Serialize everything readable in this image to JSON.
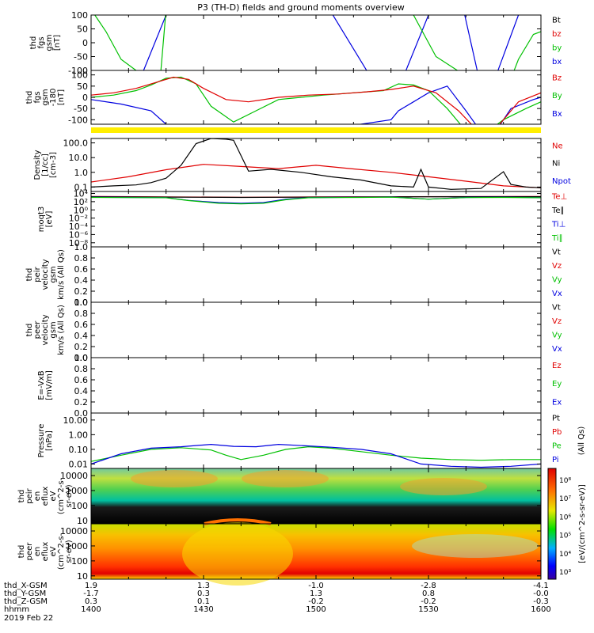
{
  "chart_data": {
    "type": "line",
    "title": "P3 (TH-D) fields and ground moments overview",
    "date_label": "2019 Feb 22",
    "panels": [
      {
        "ylabel": [
          "thd",
          "fgs",
          "gsm",
          "[nT]"
        ],
        "scale": "linear",
        "ticks": [
          "100",
          "50",
          "0",
          "-50",
          "-100"
        ],
        "tick_values": [
          100,
          50,
          0,
          -50,
          -100
        ],
        "ylim": [
          -100,
          100
        ],
        "legend": [
          {
            "name": "Bt",
            "color": "#000000"
          },
          {
            "name": "bz",
            "color": "#e00000"
          },
          {
            "name": "by",
            "color": "#00c000"
          },
          {
            "name": "bx",
            "color": "#0000e0"
          }
        ]
      },
      {
        "ylabel": [
          "thd",
          "fgs",
          "gsm",
          "-180",
          "[nT]"
        ],
        "scale": "linear",
        "ticks": [
          "100",
          "50",
          "0",
          "-50",
          "-100"
        ],
        "tick_values": [
          100,
          50,
          0,
          -50,
          -100
        ],
        "ylim": [
          -120,
          120
        ],
        "legend": [
          {
            "name": "Bz",
            "color": "#e00000"
          },
          {
            "name": "By",
            "color": "#00c000"
          },
          {
            "name": "Bx",
            "color": "#0000e0"
          }
        ]
      },
      {
        "ylabel": [
          "Density",
          "[1/cc]",
          "[cm-3]"
        ],
        "scale": "log",
        "ticks": [
          "100.0",
          "10.0",
          "1.0",
          "0.1"
        ],
        "tick_values": [
          100,
          10,
          1,
          0.1
        ],
        "ylim": [
          0.05,
          200
        ],
        "legend": [
          {
            "name": "Ne",
            "color": "#e00000"
          },
          {
            "name": "Ni",
            "color": "#000000"
          },
          {
            "name": "Npot",
            "color": "#0000e0"
          }
        ]
      },
      {
        "ylabel": [
          "moqt3",
          "[eV]"
        ],
        "scale": "log",
        "ticks": [
          "10⁴",
          "10²",
          "10⁰",
          "10⁻²",
          "10⁻⁴",
          "10⁻⁶",
          "10⁻⁸"
        ],
        "tick_values": [
          10000,
          100,
          1,
          0.01,
          0.0001,
          1e-06,
          1e-08
        ],
        "ylim": [
          1e-09,
          30000
        ],
        "legend": [
          {
            "name": "Te⊥",
            "color": "#e00000"
          },
          {
            "name": "Te∥",
            "color": "#000000"
          },
          {
            "name": "Ti⊥",
            "color": "#0000e0"
          },
          {
            "name": "Ti∥",
            "color": "#00c000"
          }
        ]
      },
      {
        "ylabel": [
          "thd",
          "peir",
          "velocity",
          "gsm",
          "km/s (All Qs)"
        ],
        "scale": "linear",
        "ticks": [
          "1.0",
          "0.8",
          "0.6",
          "0.4",
          "0.2",
          "0.0"
        ],
        "tick_values": [
          1,
          0.8,
          0.6,
          0.4,
          0.2,
          0
        ],
        "ylim": [
          0,
          1
        ],
        "legend": [
          {
            "name": "Vt",
            "color": "#000000"
          },
          {
            "name": "Vz",
            "color": "#e00000"
          },
          {
            "name": "Vy",
            "color": "#00c000"
          },
          {
            "name": "Vx",
            "color": "#0000e0"
          }
        ]
      },
      {
        "ylabel": [
          "thd",
          "peer",
          "velocity",
          "gsm",
          "km/s (All Qs)"
        ],
        "scale": "linear",
        "ticks": [
          "1.0",
          "0.8",
          "0.6",
          "0.4",
          "0.2",
          "0.0"
        ],
        "tick_values": [
          1,
          0.8,
          0.6,
          0.4,
          0.2,
          0
        ],
        "ylim": [
          0,
          1
        ],
        "legend": [
          {
            "name": "Vt",
            "color": "#000000"
          },
          {
            "name": "Vz",
            "color": "#e00000"
          },
          {
            "name": "Vy",
            "color": "#00c000"
          },
          {
            "name": "Vx",
            "color": "#0000e0"
          }
        ]
      },
      {
        "ylabel": [
          "E=-VxB",
          "[mV/m]"
        ],
        "scale": "linear",
        "ticks": [
          "1.0",
          "0.8",
          "0.6",
          "0.4",
          "0.2",
          "0.0"
        ],
        "tick_values": [
          1,
          0.8,
          0.6,
          0.4,
          0.2,
          0
        ],
        "ylim": [
          0,
          1
        ],
        "legend": [
          {
            "name": "Ez",
            "color": "#e00000"
          },
          {
            "name": "Ey",
            "color": "#00c000"
          },
          {
            "name": "Ex",
            "color": "#0000e0"
          }
        ]
      },
      {
        "ylabel": [
          "Pressure",
          "[nPa]"
        ],
        "scale": "log",
        "ticks": [
          "10.00",
          "1.00",
          "0.10",
          "0.01"
        ],
        "tick_values": [
          10,
          1,
          0.1,
          0.01
        ],
        "ylim": [
          0.005,
          30
        ],
        "legend": [
          {
            "name": "Pt",
            "color": "#000000"
          },
          {
            "name": "Pb",
            "color": "#e00000"
          },
          {
            "name": "Pe",
            "color": "#00c000"
          },
          {
            "name": "Pi",
            "color": "#0000e0"
          }
        ],
        "right_note": "(All Qs)"
      },
      {
        "ylabel": [
          "thd",
          "peir",
          "en",
          "eflux",
          "eV",
          "(cm^2-s-",
          "sr-eV)"
        ],
        "scale": "log",
        "spectrogram": true,
        "ticks": [
          "10000",
          "1000",
          "100",
          "10"
        ],
        "tick_values": [
          10000,
          1000,
          100,
          10
        ],
        "ylim": [
          6,
          30000
        ]
      },
      {
        "ylabel": [
          "thd",
          "peer",
          "en",
          "eflux",
          "eV",
          "(cm^2-s-",
          "sr-eV)"
        ],
        "scale": "log",
        "spectrogram": true,
        "ticks": [
          "10000",
          "1000",
          "100",
          "10"
        ],
        "tick_values": [
          10000,
          1000,
          100,
          10
        ],
        "ylim": [
          6,
          30000
        ]
      }
    ],
    "colorbar": {
      "ticks": [
        "10⁸",
        "10⁷",
        "10⁶",
        "10⁵",
        "10⁴",
        "10³"
      ],
      "label": "[eV/(cm^2-s-sr-eV)]"
    },
    "x_axis": {
      "row_labels": [
        "thd_X-GSM",
        "thd_Y-GSM",
        "thd_Z-GSM",
        "hhmm"
      ],
      "x_gsm": [
        "1.9",
        "1.3",
        "-1.0",
        "-2.8",
        "-4.1"
      ],
      "y_gsm": [
        "-1.7",
        "0.3",
        "1.3",
        "0.8",
        "-0.0"
      ],
      "z_gsm": [
        "0.3",
        "0.1",
        "-0.2",
        "-0.2",
        "-0.3"
      ],
      "hhmm": [
        "1400",
        "1430",
        "1500",
        "1530",
        "1600"
      ],
      "time_minutes": [
        0,
        30,
        60,
        90,
        120
      ]
    },
    "series_data": {
      "fgs_bx": {
        "x": [
          0,
          14,
          20,
          26,
          38,
          50,
          60,
          78,
          84,
          90,
          96,
          98,
          103,
          105,
          108,
          114,
          120
        ],
        "y": [
          -200,
          -100,
          100,
          200,
          200,
          200,
          200,
          -200,
          -100,
          100,
          200,
          200,
          -100,
          -200,
          -120,
          100,
          200
        ]
      },
      "fgs_by": {
        "x": [
          0,
          4,
          8,
          12,
          14,
          18,
          20,
          26,
          32,
          40,
          50,
          60,
          70,
          80,
          86,
          92,
          100,
          106,
          110,
          114,
          118,
          120
        ],
        "y": [
          120,
          40,
          -60,
          -100,
          -200,
          -200,
          120,
          200,
          200,
          200,
          200,
          200,
          200,
          200,
          100,
          -50,
          -120,
          -200,
          -200,
          -60,
          30,
          40
        ]
      },
      "fgs180_bx": {
        "x": [
          0,
          8,
          16,
          20,
          26,
          34,
          40,
          48,
          56,
          60,
          66,
          72,
          80,
          82,
          86,
          90,
          95,
          100,
          106,
          108,
          112,
          118,
          120
        ],
        "y": [
          -10,
          -30,
          -60,
          -120,
          -140,
          -140,
          -140,
          -140,
          -140,
          -140,
          -140,
          -120,
          -100,
          -60,
          -20,
          20,
          50,
          -60,
          -200,
          -150,
          -50,
          -10,
          0
        ]
      },
      "fgs180_by": {
        "x": [
          0,
          6,
          12,
          16,
          20,
          24,
          28,
          32,
          38,
          44,
          50,
          56,
          62,
          70,
          78,
          82,
          86,
          90,
          95,
          100,
          106,
          110,
          116,
          120
        ],
        "y": [
          0,
          10,
          30,
          55,
          85,
          90,
          60,
          -40,
          -110,
          -60,
          -10,
          0,
          10,
          20,
          30,
          60,
          55,
          30,
          -50,
          -150,
          -150,
          -100,
          -50,
          -20
        ]
      },
      "fgs180_bz": {
        "x": [
          0,
          6,
          12,
          18,
          22,
          26,
          30,
          36,
          42,
          50,
          58,
          66,
          74,
          80,
          86,
          92,
          98,
          102,
          108,
          114,
          120
        ],
        "y": [
          10,
          20,
          40,
          70,
          90,
          80,
          40,
          -10,
          -20,
          0,
          10,
          15,
          25,
          35,
          50,
          20,
          -60,
          -130,
          -140,
          -20,
          20
        ]
      },
      "ne": {
        "x": [
          0,
          10,
          20,
          30,
          40,
          50,
          60,
          70,
          80,
          90,
          100,
          110,
          120
        ],
        "y": [
          0.22,
          0.5,
          1.5,
          3.5,
          2.5,
          1.8,
          3.0,
          1.7,
          1.0,
          0.5,
          0.25,
          0.12,
          0.09
        ]
      },
      "ni": {
        "x": [
          0,
          6,
          12,
          16,
          20,
          24,
          28,
          32,
          36,
          38,
          42,
          48,
          56,
          64,
          72,
          80,
          86,
          88,
          90,
          96,
          104,
          110,
          112,
          116,
          120
        ],
        "y": [
          0.1,
          0.12,
          0.14,
          0.2,
          0.4,
          3.0,
          90,
          200,
          180,
          150,
          1.2,
          1.6,
          1.0,
          0.5,
          0.3,
          0.12,
          0.1,
          1.6,
          0.1,
          0.07,
          0.08,
          1.1,
          0.15,
          0.1,
          0.09
        ]
      },
      "te_perp": {
        "x": [
          0,
          20,
          40,
          60,
          80,
          100,
          120
        ],
        "y": [
          1800,
          1500,
          1200,
          1400,
          1600,
          1700,
          1800
        ]
      },
      "te_par": {
        "x": [
          0,
          20,
          40,
          60,
          80,
          100,
          120
        ],
        "y": [
          1600,
          1300,
          1100,
          1300,
          1500,
          1600,
          1600
        ]
      },
      "ti_perp": {
        "x": [
          0,
          10,
          20,
          26,
          34,
          40,
          46,
          52,
          58,
          64,
          72,
          80,
          90,
          100,
          110,
          120
        ],
        "y": [
          1200,
          1100,
          1000,
          200,
          60,
          40,
          60,
          400,
          1000,
          1100,
          1200,
          1400,
          400,
          1100,
          1200,
          1000
        ]
      },
      "ti_par": {
        "x": [
          0,
          10,
          20,
          26,
          34,
          40,
          46,
          52,
          58,
          64,
          72,
          80,
          90,
          100,
          110,
          120
        ],
        "y": [
          1100,
          1000,
          900,
          180,
          40,
          30,
          40,
          300,
          900,
          1000,
          1100,
          1300,
          400,
          1000,
          1100,
          900
        ]
      },
      "pe": {
        "x": [
          0,
          8,
          16,
          24,
          32,
          36,
          40,
          46,
          52,
          58,
          64,
          72,
          80,
          88,
          96,
          104,
          112,
          120
        ],
        "y": [
          0.015,
          0.04,
          0.1,
          0.13,
          0.09,
          0.04,
          0.02,
          0.04,
          0.1,
          0.15,
          0.12,
          0.07,
          0.04,
          0.025,
          0.02,
          0.018,
          0.02,
          0.02
        ]
      },
      "pi": {
        "x": [
          0,
          8,
          16,
          24,
          32,
          38,
          44,
          50,
          58,
          64,
          72,
          80,
          88,
          96,
          104,
          112,
          120
        ],
        "y": [
          0.01,
          0.05,
          0.12,
          0.15,
          0.22,
          0.16,
          0.15,
          0.22,
          0.17,
          0.14,
          0.1,
          0.05,
          0.01,
          0.007,
          0.006,
          0.007,
          0.01
        ]
      }
    }
  }
}
